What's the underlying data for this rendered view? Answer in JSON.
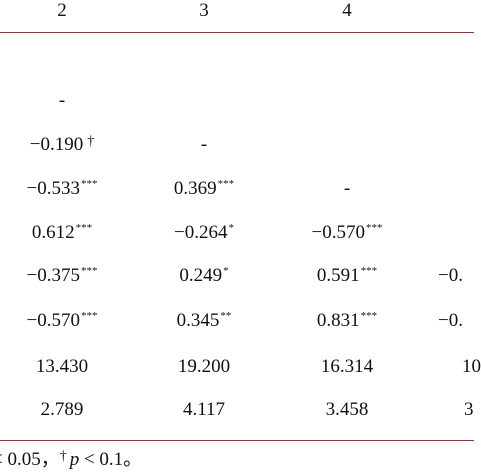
{
  "header": [
    "2",
    "3",
    "4"
  ],
  "rows": [
    {
      "c2": "-",
      "c3": "",
      "c4": "",
      "c5": ""
    },
    {
      "c2": "−0.190",
      "c2_mark": "†",
      "c3": "-",
      "c4": "",
      "c5": ""
    },
    {
      "c2": "−0.533",
      "c2_sup": "***",
      "c3": "0.369",
      "c3_sup": "***",
      "c4": "-",
      "c5": ""
    },
    {
      "c2": "0.612",
      "c2_sup": "***",
      "c3": "−0.264",
      "c3_sup": "*",
      "c4": "−0.570",
      "c4_sup": "***",
      "c5": ""
    },
    {
      "c2": "−0.375",
      "c2_sup": "***",
      "c3": "0.249",
      "c3_sup": "*",
      "c4": "0.591",
      "c4_sup": "***",
      "c5": "−0."
    },
    {
      "c2": "−0.570",
      "c2_sup": "***",
      "c3": "0.345",
      "c3_sup": "**",
      "c4": "0.831",
      "c4_sup": "***",
      "c5": "−0."
    },
    {
      "c2": "13.430",
      "c3": "19.200",
      "c4": "16.314",
      "c5": "10"
    },
    {
      "c2": "2.789",
      "c3": "4.117",
      "c4": "3.458",
      "c5": "3"
    }
  ],
  "footnote": {
    "part1": "< 0.05，",
    "dagger": "†",
    "p": "p",
    "part2": " < 0.1。"
  }
}
